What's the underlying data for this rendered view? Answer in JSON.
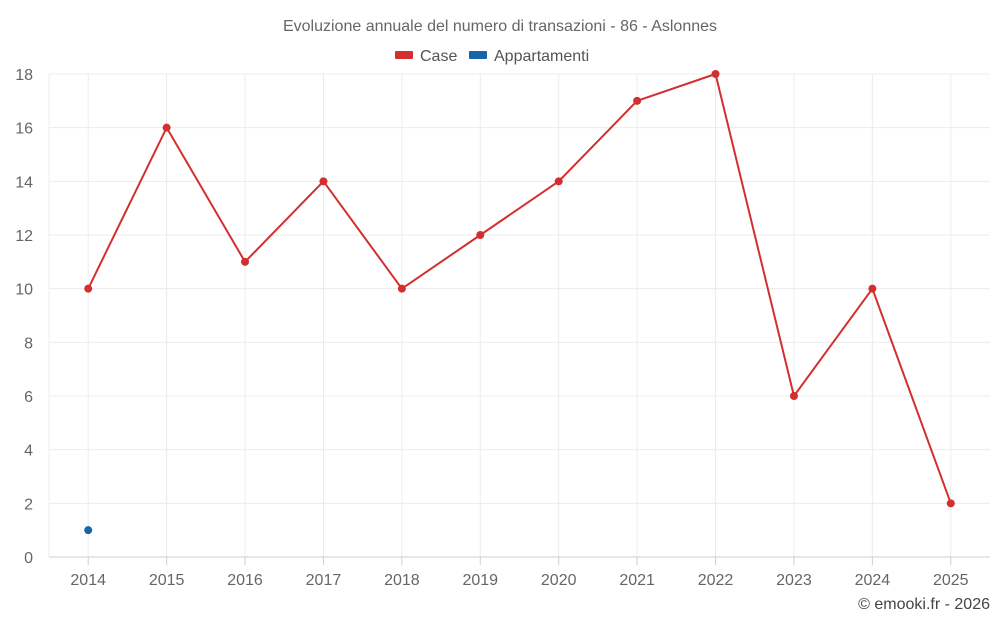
{
  "chart_data": {
    "type": "line",
    "title": "Evoluzione annuale del numero di transazioni - 86 - Aslonnes",
    "categories": [
      "2014",
      "2015",
      "2016",
      "2017",
      "2018",
      "2019",
      "2020",
      "2021",
      "2022",
      "2023",
      "2024",
      "2025"
    ],
    "series": [
      {
        "name": "Case",
        "color": "#d32f2f",
        "values": [
          10,
          16,
          11,
          14,
          10,
          12,
          14,
          17,
          18,
          6,
          10,
          2
        ]
      },
      {
        "name": "Appartamenti",
        "color": "#1565a8",
        "values": [
          1,
          null,
          null,
          null,
          null,
          null,
          null,
          null,
          null,
          null,
          null,
          null
        ]
      }
    ],
    "ylim": [
      0,
      18
    ],
    "yticks": [
      0,
      2,
      4,
      6,
      8,
      10,
      12,
      14,
      16,
      18
    ],
    "xlabel": "",
    "ylabel": "",
    "grid": true,
    "legend": "top-center"
  },
  "credit": "© emooki.fr - 2026"
}
